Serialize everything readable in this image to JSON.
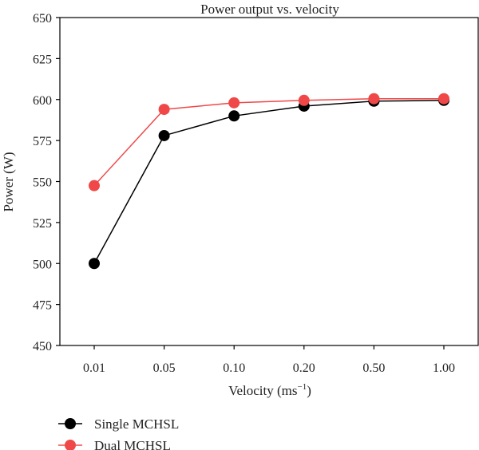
{
  "chart_data": {
    "type": "line",
    "title": "Power output vs. velocity",
    "xlabel": "Velocity (ms",
    "xlabel_sup": "−1",
    "xlabel_end": ")",
    "ylabel": "Power (W)",
    "categories": [
      "0.01",
      "0.05",
      "0.10",
      "0.20",
      "0.50",
      "1.00"
    ],
    "ylim": [
      450,
      650
    ],
    "yticks": [
      450,
      475,
      500,
      525,
      550,
      575,
      600,
      625,
      650
    ],
    "grid": false,
    "legend_position": "bottom-left",
    "series": [
      {
        "name": "Single MCHSL",
        "color": "#000000",
        "values": [
          500,
          578,
          590,
          596,
          599,
          599.5
        ]
      },
      {
        "name": "Dual MCHSL",
        "color": "#f04848",
        "values": [
          547.5,
          594,
          598,
          599.5,
          600.5,
          600.5
        ]
      }
    ]
  }
}
